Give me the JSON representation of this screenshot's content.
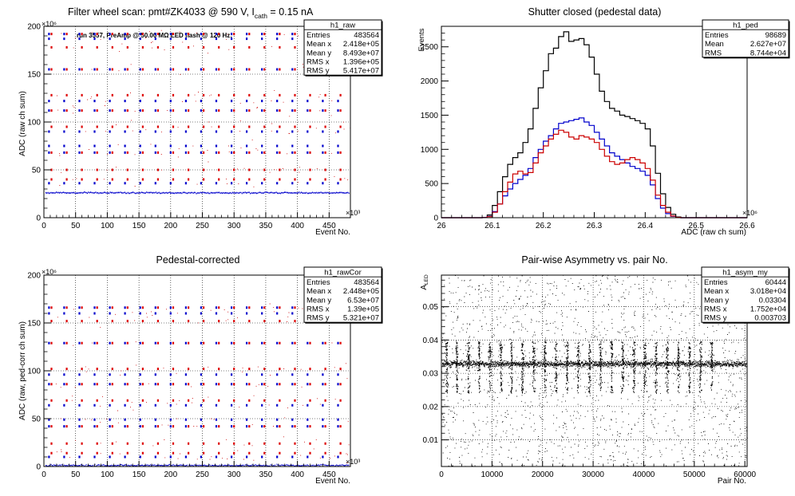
{
  "panels": {
    "raw": {
      "title_prefix": "Filter wheel scan: pmt#ZK4033 @   590 V, I",
      "title_sub": "cath",
      "title_suffix": " = 0.15 nA",
      "subtitle": "run 3557, PreAmp @ 50.00 MΩ LED flash @  120 Hz:",
      "ylabel": "ADC (raw ch sum)",
      "xlabel": "Event No.",
      "x_exp": "×10³",
      "y_exp": "×10⁶",
      "stats": {
        "name": "h1_raw",
        "rows": [
          [
            "Entries",
            "483564"
          ],
          [
            "Mean x",
            "2.418e+05"
          ],
          [
            "Mean y",
            "8.493e+07"
          ],
          [
            "RMS x",
            "1.396e+05"
          ],
          [
            "RMS y",
            "5.417e+07"
          ]
        ]
      }
    },
    "ped": {
      "title": "Shutter closed (pedestal data)",
      "ylabel": "Events",
      "xlabel": "ADC (raw ch sum)",
      "x_exp": "×10⁶",
      "stats": {
        "name": "h1_ped",
        "rows": [
          [
            "Entries",
            "98689"
          ],
          [
            "Mean",
            "2.627e+07"
          ],
          [
            "RMS",
            "8.744e+04"
          ]
        ]
      }
    },
    "cor": {
      "title": "Pedestal-corrected",
      "ylabel": "ADC (raw, ped-corr ch sum)",
      "xlabel": "Event No.",
      "x_exp": "×10³",
      "y_exp": "×10⁶",
      "stats": {
        "name": "h1_rawCor",
        "rows": [
          [
            "Entries",
            "483564"
          ],
          [
            "Mean x",
            "2.448e+05"
          ],
          [
            "Mean y",
            "6.53e+07"
          ],
          [
            "RMS x",
            "1.39e+05"
          ],
          [
            "RMS y",
            "5.321e+07"
          ]
        ]
      }
    },
    "asym": {
      "title": "Pair-wise Asymmetry vs. pair No.",
      "ylabel_main": "A",
      "ylabel_sub": "LED",
      "xlabel": "Pair No.",
      "stats": {
        "name": "h1_asym_my",
        "rows": [
          [
            "Entries",
            "60444"
          ],
          [
            "Mean x",
            "3.018e+04"
          ],
          [
            "Mean y",
            "0.03304"
          ],
          [
            "RMS x",
            "1.752e+04"
          ],
          [
            "RMS y",
            "0.003703"
          ]
        ]
      }
    }
  },
  "chart_data": [
    {
      "id": "raw",
      "type": "scatter",
      "xlim": [
        0,
        483.564
      ],
      "ylim": [
        0,
        200
      ],
      "xticks": [
        0,
        50,
        100,
        150,
        200,
        250,
        300,
        350,
        400,
        450
      ],
      "yticks": [
        0,
        50,
        100,
        150,
        200
      ],
      "grid": true,
      "pedestal_level": 26,
      "cycle_period": 24,
      "cycle_start": 8,
      "levels": [
        {
          "y": 192,
          "red": true,
          "blue": true
        },
        {
          "y": 187,
          "red": false,
          "blue": true
        },
        {
          "y": 178,
          "red": true,
          "blue": false
        },
        {
          "y": 155,
          "red": true,
          "blue": true
        },
        {
          "y": 128,
          "red": true,
          "blue": false
        },
        {
          "y": 122,
          "red": false,
          "blue": true
        },
        {
          "y": 112,
          "red": true,
          "blue": true
        },
        {
          "y": 95,
          "red": true,
          "blue": false
        },
        {
          "y": 90,
          "red": false,
          "blue": true
        },
        {
          "y": 75,
          "red": false,
          "blue": true
        },
        {
          "y": 68,
          "red": true,
          "blue": true
        },
        {
          "y": 50,
          "red": true,
          "blue": false
        },
        {
          "y": 40,
          "red": true,
          "blue": false
        },
        {
          "y": 36,
          "red": false,
          "blue": true
        }
      ]
    },
    {
      "id": "ped",
      "type": "line",
      "x_unit_scale": "1e6",
      "xlim": [
        26.0,
        26.6
      ],
      "ylim": [
        0,
        2800
      ],
      "xticks": [
        26.0,
        26.1,
        26.2,
        26.3,
        26.4,
        26.5,
        26.6
      ],
      "yticks": [
        0,
        500,
        1000,
        1500,
        2000,
        2500
      ],
      "grid": false,
      "bins_x": [
        26.0,
        26.01,
        26.02,
        26.03,
        26.04,
        26.05,
        26.06,
        26.07,
        26.08,
        26.09,
        26.1,
        26.11,
        26.12,
        26.13,
        26.14,
        26.15,
        26.16,
        26.17,
        26.18,
        26.19,
        26.2,
        26.21,
        26.22,
        26.23,
        26.24,
        26.25,
        26.26,
        26.27,
        26.28,
        26.29,
        26.3,
        26.31,
        26.32,
        26.33,
        26.34,
        26.35,
        26.36,
        26.37,
        26.38,
        26.39,
        26.4,
        26.41,
        26.42,
        26.43,
        26.44,
        26.45,
        26.46,
        26.47,
        26.48,
        26.49,
        26.5,
        26.51,
        26.52,
        26.53,
        26.54,
        26.55,
        26.56,
        26.57,
        26.58,
        26.59
      ],
      "series": [
        {
          "color": "#000000",
          "values": [
            0,
            0,
            0,
            0,
            0,
            0,
            0,
            0,
            5,
            40,
            180,
            380,
            600,
            780,
            880,
            950,
            1100,
            1300,
            1600,
            1900,
            2150,
            2400,
            2480,
            2650,
            2720,
            2580,
            2600,
            2620,
            2530,
            2350,
            2100,
            1850,
            1700,
            1600,
            1560,
            1500,
            1480,
            1450,
            1420,
            1380,
            1300,
            1050,
            650,
            350,
            150,
            50,
            10,
            0,
            0,
            0,
            0,
            0,
            0,
            0,
            0,
            0,
            0,
            0,
            0,
            0
          ]
        },
        {
          "color": "#0000cc",
          "values": [
            0,
            0,
            0,
            0,
            0,
            0,
            0,
            0,
            3,
            20,
            90,
            200,
            320,
            420,
            500,
            560,
            620,
            720,
            880,
            1000,
            1120,
            1200,
            1300,
            1380,
            1400,
            1420,
            1440,
            1460,
            1400,
            1350,
            1250,
            1150,
            1050,
            950,
            900,
            850,
            800,
            750,
            720,
            680,
            620,
            480,
            280,
            140,
            60,
            20,
            4,
            0,
            0,
            0,
            0,
            0,
            0,
            0,
            0,
            0,
            0,
            0,
            0,
            0
          ]
        },
        {
          "color": "#cc0000",
          "values": [
            0,
            0,
            0,
            0,
            0,
            0,
            0,
            0,
            2,
            15,
            80,
            200,
            380,
            520,
            640,
            680,
            640,
            660,
            800,
            950,
            1050,
            1150,
            1220,
            1280,
            1250,
            1180,
            1150,
            1200,
            1180,
            1150,
            1100,
            1000,
            900,
            820,
            780,
            800,
            850,
            880,
            850,
            800,
            720,
            550,
            330,
            180,
            80,
            25,
            5,
            0,
            0,
            0,
            0,
            0,
            0,
            0,
            0,
            0,
            0,
            0,
            0,
            0
          ]
        }
      ]
    },
    {
      "id": "cor",
      "type": "scatter",
      "xlim": [
        0,
        483.564
      ],
      "ylim": [
        0,
        200
      ],
      "xticks": [
        0,
        50,
        100,
        150,
        200,
        250,
        300,
        350,
        400,
        450
      ],
      "yticks": [
        0,
        50,
        100,
        150,
        200
      ],
      "grid": true,
      "pedestal_level": 0,
      "cycle_period": 24,
      "cycle_start": 8,
      "levels": [
        {
          "y": 166,
          "red": true,
          "blue": true
        },
        {
          "y": 160,
          "red": false,
          "blue": true
        },
        {
          "y": 152,
          "red": true,
          "blue": false
        },
        {
          "y": 129,
          "red": true,
          "blue": true
        },
        {
          "y": 102,
          "red": true,
          "blue": false
        },
        {
          "y": 96,
          "red": false,
          "blue": true
        },
        {
          "y": 86,
          "red": true,
          "blue": true
        },
        {
          "y": 69,
          "red": true,
          "blue": false
        },
        {
          "y": 64,
          "red": false,
          "blue": true
        },
        {
          "y": 49,
          "red": false,
          "blue": true
        },
        {
          "y": 42,
          "red": true,
          "blue": true
        },
        {
          "y": 24,
          "red": true,
          "blue": false
        },
        {
          "y": 14,
          "red": true,
          "blue": false
        },
        {
          "y": 10,
          "red": false,
          "blue": true
        }
      ]
    },
    {
      "id": "asym",
      "type": "scatter",
      "xlim": [
        0,
        60444
      ],
      "ylim": [
        0.002,
        0.0595
      ],
      "xticks": [
        0,
        10000,
        20000,
        30000,
        40000,
        50000,
        60000
      ],
      "yticks": [
        0.01,
        0.02,
        0.03,
        0.04,
        0.05
      ],
      "grid": true,
      "band_center": 0.0328,
      "band_halfwidth": 0.0009,
      "spike_x": [
        1000,
        3000,
        5300,
        7400,
        9500,
        11700,
        13800,
        16000,
        18200,
        20400,
        22600,
        24800,
        27000,
        29200,
        31400,
        33600,
        35800,
        38000,
        40200,
        42400,
        44600,
        46800,
        49000,
        51200,
        53400
      ],
      "spike_up_max": 0.0395,
      "spike_down_min": 0.024
    }
  ]
}
